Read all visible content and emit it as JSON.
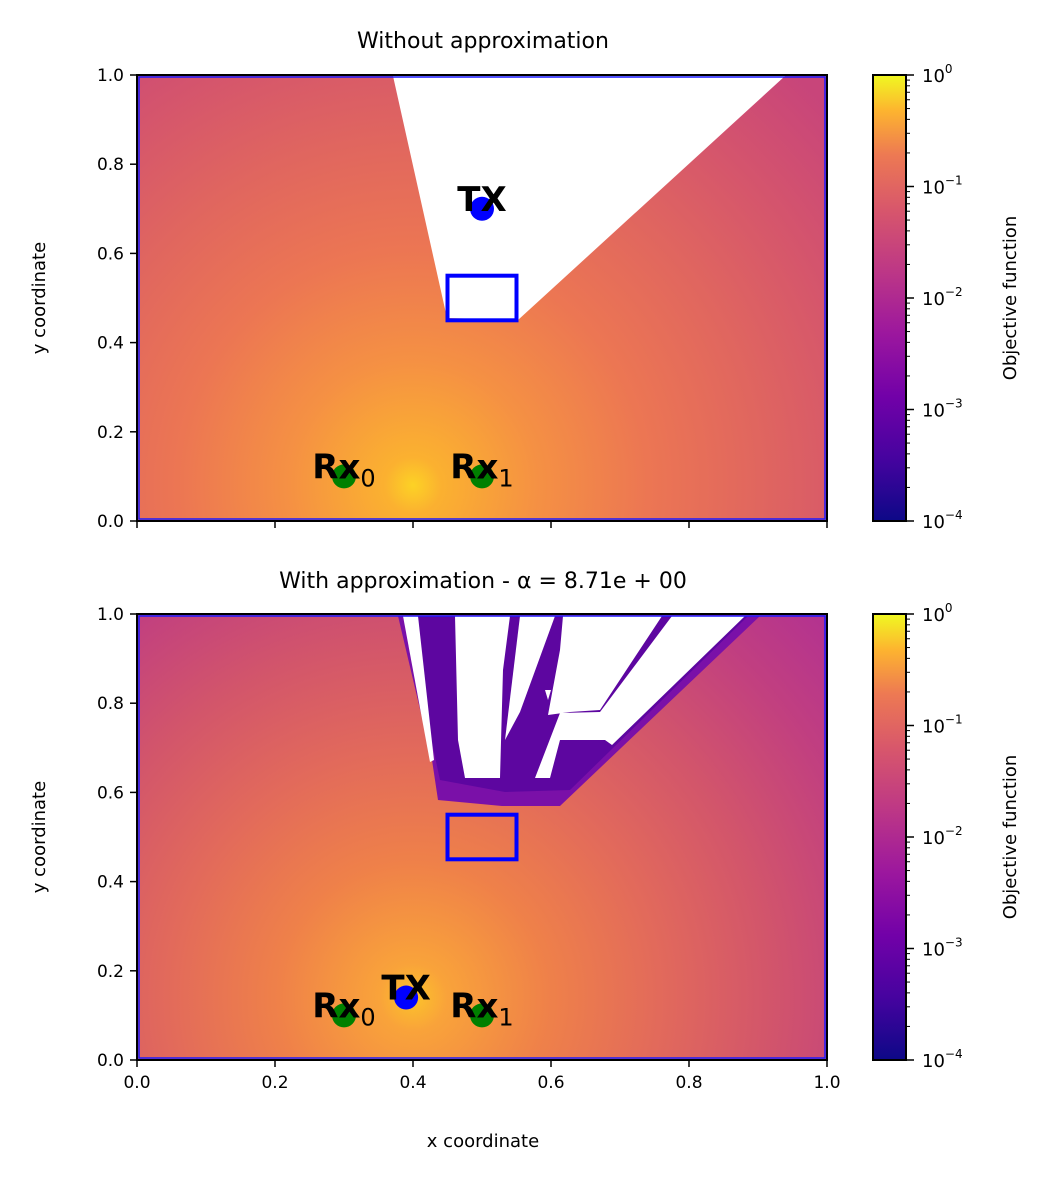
{
  "chart_data": [
    {
      "type": "heatmap",
      "title": "Without approximation",
      "xlabel": "",
      "ylabel": "y coordinate",
      "xlim": [
        0,
        1
      ],
      "ylim": [
        0,
        1
      ],
      "x_ticks": [
        "",
        "",
        "",
        "",
        "",
        ""
      ],
      "y_ticks": [
        "0.0",
        "0.2",
        "0.4",
        "0.6",
        "0.8",
        "1.0"
      ],
      "colormap": "plasma",
      "colorbar": {
        "label": "Objective function",
        "scale": "log",
        "range": [
          0.0001,
          1
        ],
        "ticks": [
          {
            "base": "10",
            "exp": "0"
          },
          {
            "base": "10",
            "exp": "−1"
          },
          {
            "base": "10",
            "exp": "−2"
          },
          {
            "base": "10",
            "exp": "−3"
          },
          {
            "base": "10",
            "exp": "−4"
          }
        ]
      },
      "peak": {
        "x": 0.4,
        "y": 0.08
      },
      "obstacle": {
        "x": [
          0.45,
          0.55
        ],
        "y": [
          0.45,
          0.55
        ]
      },
      "markers": [
        {
          "label": "TX",
          "sub": "",
          "x": 0.5,
          "y": 0.7,
          "color": "#0000ff"
        },
        {
          "label": "Rx",
          "sub": "0",
          "x": 0.3,
          "y": 0.1,
          "color": "#008000"
        },
        {
          "label": "Rx",
          "sub": "1",
          "x": 0.5,
          "y": 0.1,
          "color": "#008000"
        }
      ]
    },
    {
      "type": "heatmap",
      "title": "With approximation - α = 8.71e + 00",
      "xlabel": "x coordinate",
      "ylabel": "y coordinate",
      "xlim": [
        0,
        1
      ],
      "ylim": [
        0,
        1
      ],
      "x_ticks": [
        "0.0",
        "0.2",
        "0.4",
        "0.6",
        "0.8",
        "1.0"
      ],
      "y_ticks": [
        "0.0",
        "0.2",
        "0.4",
        "0.6",
        "0.8",
        "1.0"
      ],
      "colormap": "plasma",
      "colorbar": {
        "label": "Objective function",
        "scale": "log",
        "range": [
          0.0001,
          1
        ],
        "ticks": [
          {
            "base": "10",
            "exp": "0"
          },
          {
            "base": "10",
            "exp": "−1"
          },
          {
            "base": "10",
            "exp": "−2"
          },
          {
            "base": "10",
            "exp": "−3"
          },
          {
            "base": "10",
            "exp": "−4"
          }
        ]
      },
      "peak": {
        "x": 0.4,
        "y": 0.14
      },
      "obstacle": {
        "x": [
          0.45,
          0.55
        ],
        "y": [
          0.45,
          0.55
        ]
      },
      "markers": [
        {
          "label": "TX",
          "sub": "",
          "x": 0.39,
          "y": 0.14,
          "color": "#0000ff"
        },
        {
          "label": "Rx",
          "sub": "0",
          "x": 0.3,
          "y": 0.1,
          "color": "#008000"
        },
        {
          "label": "Rx",
          "sub": "1",
          "x": 0.5,
          "y": 0.1,
          "color": "#008000"
        }
      ]
    }
  ]
}
